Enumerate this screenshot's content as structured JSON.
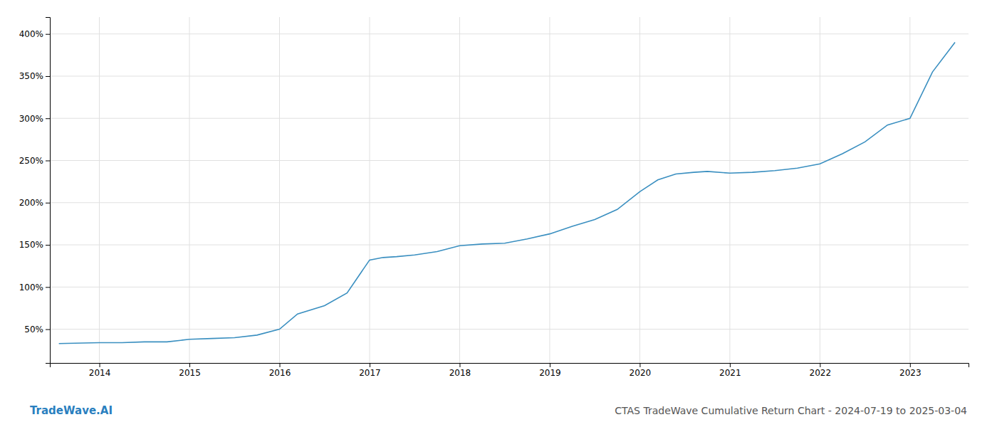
{
  "chart_data": {
    "type": "line",
    "title": "CTAS TradeWave Cumulative Return Chart - 2024-07-19 to 2025-03-04",
    "annotations": [
      {
        "text": "TradeWave.AI"
      }
    ],
    "x": [
      2013.55,
      2014.0,
      2014.25,
      2014.5,
      2014.75,
      2015.0,
      2015.25,
      2015.5,
      2015.75,
      2016.0,
      2016.2,
      2016.5,
      2016.75,
      2017.0,
      2017.15,
      2017.3,
      2017.5,
      2017.75,
      2018.0,
      2018.25,
      2018.5,
      2018.75,
      2019.0,
      2019.25,
      2019.5,
      2019.75,
      2020.0,
      2020.2,
      2020.4,
      2020.6,
      2020.75,
      2021.0,
      2021.25,
      2021.5,
      2021.75,
      2022.0,
      2022.25,
      2022.5,
      2022.75,
      2023.0,
      2023.25,
      2023.5
    ],
    "values": [
      33,
      34,
      34,
      35,
      35,
      38,
      39,
      40,
      43,
      50,
      68,
      78,
      93,
      132,
      135,
      136,
      138,
      142,
      149,
      151,
      152,
      157,
      163,
      172,
      180,
      192,
      213,
      227,
      234,
      236,
      237,
      235,
      236,
      238,
      241,
      246,
      258,
      272,
      292,
      300,
      355,
      390
    ],
    "color": "#3a8fc0",
    "xlim": [
      2013.45,
      2023.65
    ],
    "xticks": [
      2014,
      2015,
      2016,
      2017,
      2018,
      2019,
      2020,
      2021,
      2022,
      2023
    ],
    "ylim": [
      10,
      420
    ],
    "yticks": [
      {
        "value": 50,
        "label": "50%"
      },
      {
        "value": 100,
        "label": "100%"
      },
      {
        "value": 150,
        "label": "150%"
      },
      {
        "value": 200,
        "label": "200%"
      },
      {
        "value": 250,
        "label": "250%"
      },
      {
        "value": 300,
        "label": "300%"
      },
      {
        "value": 350,
        "label": "350%"
      },
      {
        "value": 400,
        "label": "400%"
      }
    ],
    "grid": true
  }
}
